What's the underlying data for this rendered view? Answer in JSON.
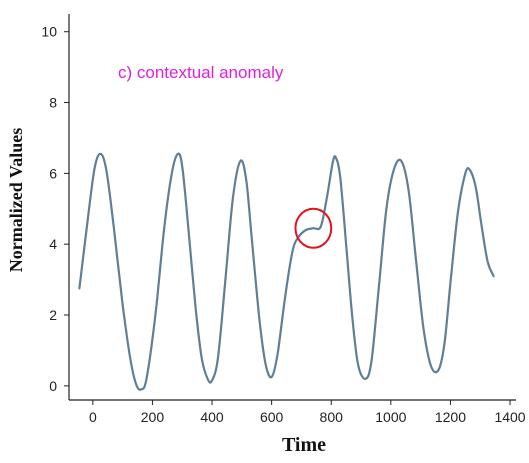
{
  "chart_data": {
    "type": "line",
    "title": "",
    "annotation": "c) contextual anomaly",
    "xlabel": "Time",
    "ylabel": "Normalized Values",
    "xlim": [
      -80,
      1420
    ],
    "ylim": [
      -0.4,
      10.5
    ],
    "xticks": [
      0,
      200,
      400,
      600,
      800,
      1000,
      1200,
      1400
    ],
    "yticks": [
      0,
      2,
      4,
      6,
      8,
      10
    ],
    "grid": false,
    "legend": "none",
    "anomaly_region": {
      "x": 740,
      "y": 4.45,
      "rx": 60,
      "ry": 0.55
    },
    "series": [
      {
        "color": "#5f7f96",
        "points": [
          [
            -45,
            2.75
          ],
          [
            -20,
            4.5
          ],
          [
            5,
            6.1
          ],
          [
            25,
            6.55
          ],
          [
            45,
            6.1
          ],
          [
            70,
            4.5
          ],
          [
            100,
            2.3
          ],
          [
            125,
            0.8
          ],
          [
            145,
            0.05
          ],
          [
            162,
            -0.1
          ],
          [
            180,
            0.2
          ],
          [
            210,
            2.0
          ],
          [
            240,
            4.5
          ],
          [
            265,
            6.0
          ],
          [
            285,
            6.55
          ],
          [
            300,
            6.2
          ],
          [
            320,
            4.5
          ],
          [
            345,
            2.2
          ],
          [
            365,
            0.8
          ],
          [
            385,
            0.2
          ],
          [
            400,
            0.15
          ],
          [
            420,
            0.8
          ],
          [
            445,
            3.0
          ],
          [
            470,
            5.3
          ],
          [
            495,
            6.35
          ],
          [
            515,
            5.8
          ],
          [
            535,
            4.0
          ],
          [
            560,
            1.8
          ],
          [
            580,
            0.6
          ],
          [
            600,
            0.25
          ],
          [
            620,
            0.9
          ],
          [
            645,
            2.5
          ],
          [
            670,
            3.8
          ],
          [
            690,
            4.2
          ],
          [
            715,
            4.4
          ],
          [
            740,
            4.45
          ],
          [
            765,
            4.5
          ],
          [
            785,
            5.3
          ],
          [
            805,
            6.3
          ],
          [
            815,
            6.45
          ],
          [
            830,
            5.9
          ],
          [
            850,
            4.0
          ],
          [
            870,
            2.0
          ],
          [
            890,
            0.6
          ],
          [
            915,
            0.2
          ],
          [
            935,
            0.7
          ],
          [
            960,
            2.8
          ],
          [
            985,
            5.0
          ],
          [
            1010,
            6.1
          ],
          [
            1035,
            6.35
          ],
          [
            1060,
            5.5
          ],
          [
            1085,
            3.5
          ],
          [
            1110,
            1.6
          ],
          [
            1135,
            0.55
          ],
          [
            1160,
            0.45
          ],
          [
            1180,
            1.2
          ],
          [
            1200,
            2.9
          ],
          [
            1225,
            4.9
          ],
          [
            1250,
            6.0
          ],
          [
            1265,
            6.1
          ],
          [
            1285,
            5.6
          ],
          [
            1305,
            4.5
          ],
          [
            1325,
            3.5
          ],
          [
            1345,
            3.1
          ]
        ]
      }
    ]
  },
  "colors": {
    "line": "#5f7f96",
    "annotation": "#e020e0",
    "anomaly_marker": "#e0141c",
    "axis": "#222222"
  }
}
